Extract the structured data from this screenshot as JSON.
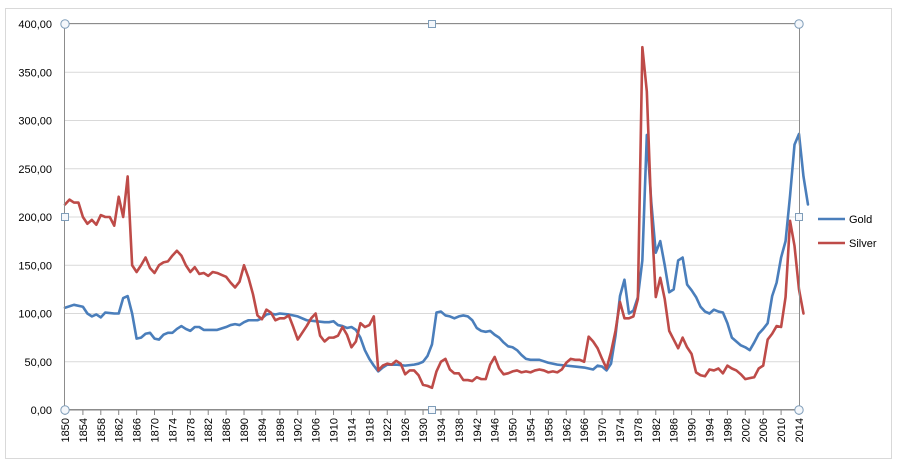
{
  "chart_data": {
    "type": "line",
    "title": "",
    "xlabel": "",
    "ylabel": "",
    "xlim": [
      1850,
      2014
    ],
    "ylim": [
      0,
      400
    ],
    "grid": true,
    "legend_position": "right",
    "x_ticks": [
      1850,
      1854,
      1858,
      1862,
      1866,
      1870,
      1874,
      1878,
      1882,
      1886,
      1890,
      1894,
      1898,
      1902,
      1906,
      1910,
      1914,
      1918,
      1922,
      1926,
      1930,
      1934,
      1938,
      1942,
      1946,
      1950,
      1954,
      1958,
      1962,
      1966,
      1970,
      1974,
      1978,
      1982,
      1986,
      1990,
      1994,
      1998,
      2002,
      2006,
      2010,
      2014
    ],
    "y_ticks": [
      "0,00",
      "50,00",
      "100,00",
      "150,00",
      "200,00",
      "250,00",
      "300,00",
      "350,00",
      "400,00"
    ],
    "series": [
      {
        "name": "Gold",
        "color": "#4a7ebb",
        "points": [
          [
            1850,
            106
          ],
          [
            1852,
            109
          ],
          [
            1854,
            107
          ],
          [
            1855,
            100
          ],
          [
            1856,
            97
          ],
          [
            1857,
            99
          ],
          [
            1858,
            96
          ],
          [
            1859,
            101
          ],
          [
            1861,
            100
          ],
          [
            1862,
            100
          ],
          [
            1863,
            116
          ],
          [
            1864,
            118
          ],
          [
            1865,
            100
          ],
          [
            1866,
            74
          ],
          [
            1867,
            75
          ],
          [
            1868,
            79
          ],
          [
            1869,
            80
          ],
          [
            1870,
            74
          ],
          [
            1871,
            73
          ],
          [
            1872,
            78
          ],
          [
            1873,
            80
          ],
          [
            1874,
            80
          ],
          [
            1875,
            84
          ],
          [
            1876,
            87
          ],
          [
            1877,
            84
          ],
          [
            1878,
            82
          ],
          [
            1879,
            86
          ],
          [
            1880,
            86
          ],
          [
            1881,
            83
          ],
          [
            1882,
            83
          ],
          [
            1884,
            83
          ],
          [
            1886,
            86
          ],
          [
            1887,
            88
          ],
          [
            1888,
            89
          ],
          [
            1889,
            88
          ],
          [
            1890,
            91
          ],
          [
            1891,
            93
          ],
          [
            1893,
            93
          ],
          [
            1894,
            95
          ],
          [
            1895,
            99
          ],
          [
            1896,
            100
          ],
          [
            1897,
            99
          ],
          [
            1898,
            100
          ],
          [
            1900,
            99
          ],
          [
            1902,
            97
          ],
          [
            1904,
            93
          ],
          [
            1906,
            92
          ],
          [
            1908,
            91
          ],
          [
            1909,
            91
          ],
          [
            1910,
            92
          ],
          [
            1911,
            88
          ],
          [
            1912,
            87
          ],
          [
            1913,
            85
          ],
          [
            1914,
            86
          ],
          [
            1915,
            83
          ],
          [
            1916,
            75
          ],
          [
            1917,
            62
          ],
          [
            1918,
            53
          ],
          [
            1919,
            46
          ],
          [
            1920,
            40
          ],
          [
            1921,
            44
          ],
          [
            1922,
            47
          ],
          [
            1924,
            47
          ],
          [
            1926,
            46
          ],
          [
            1928,
            47
          ],
          [
            1929,
            48
          ],
          [
            1930,
            50
          ],
          [
            1931,
            56
          ],
          [
            1932,
            68
          ],
          [
            1933,
            101
          ],
          [
            1934,
            102
          ],
          [
            1935,
            98
          ],
          [
            1936,
            97
          ],
          [
            1937,
            95
          ],
          [
            1938,
            97
          ],
          [
            1939,
            98
          ],
          [
            1940,
            97
          ],
          [
            1941,
            93
          ],
          [
            1942,
            85
          ],
          [
            1943,
            82
          ],
          [
            1944,
            81
          ],
          [
            1945,
            82
          ],
          [
            1946,
            78
          ],
          [
            1947,
            75
          ],
          [
            1948,
            70
          ],
          [
            1949,
            66
          ],
          [
            1950,
            65
          ],
          [
            1951,
            62
          ],
          [
            1952,
            57
          ],
          [
            1953,
            53
          ],
          [
            1954,
            52
          ],
          [
            1956,
            52
          ],
          [
            1958,
            49
          ],
          [
            1960,
            47
          ],
          [
            1962,
            46
          ],
          [
            1964,
            45
          ],
          [
            1966,
            44
          ],
          [
            1968,
            42
          ],
          [
            1969,
            46
          ],
          [
            1970,
            45
          ],
          [
            1971,
            41
          ],
          [
            1972,
            48
          ],
          [
            1973,
            77
          ],
          [
            1974,
            118
          ],
          [
            1975,
            135
          ],
          [
            1976,
            100
          ],
          [
            1977,
            103
          ],
          [
            1978,
            117
          ],
          [
            1979,
            155
          ],
          [
            1980,
            285
          ],
          [
            1981,
            215
          ],
          [
            1982,
            163
          ],
          [
            1983,
            175
          ],
          [
            1984,
            150
          ],
          [
            1985,
            122
          ],
          [
            1986,
            125
          ],
          [
            1987,
            155
          ],
          [
            1988,
            158
          ],
          [
            1989,
            130
          ],
          [
            1990,
            124
          ],
          [
            1991,
            117
          ],
          [
            1992,
            107
          ],
          [
            1993,
            102
          ],
          [
            1994,
            100
          ],
          [
            1995,
            104
          ],
          [
            1996,
            102
          ],
          [
            1997,
            101
          ],
          [
            1998,
            90
          ],
          [
            1999,
            75
          ],
          [
            2000,
            71
          ],
          [
            2001,
            67
          ],
          [
            2002,
            65
          ],
          [
            2003,
            62
          ],
          [
            2004,
            70
          ],
          [
            2005,
            79
          ],
          [
            2006,
            84
          ],
          [
            2007,
            90
          ],
          [
            2008,
            118
          ],
          [
            2009,
            132
          ],
          [
            2010,
            158
          ],
          [
            2011,
            175
          ],
          [
            2012,
            222
          ],
          [
            2013,
            275
          ],
          [
            2014,
            286
          ],
          [
            2015,
            242
          ],
          [
            2016,
            213
          ]
        ]
      },
      {
        "name": "Silver",
        "color": "#be4b48",
        "points": [
          [
            1850,
            213
          ],
          [
            1851,
            218
          ],
          [
            1852,
            215
          ],
          [
            1853,
            215
          ],
          [
            1854,
            200
          ],
          [
            1855,
            193
          ],
          [
            1856,
            197
          ],
          [
            1857,
            192
          ],
          [
            1858,
            202
          ],
          [
            1859,
            200
          ],
          [
            1860,
            200
          ],
          [
            1861,
            191
          ],
          [
            1862,
            221
          ],
          [
            1863,
            200
          ],
          [
            1864,
            242
          ],
          [
            1865,
            150
          ],
          [
            1866,
            143
          ],
          [
            1867,
            150
          ],
          [
            1868,
            158
          ],
          [
            1869,
            147
          ],
          [
            1870,
            142
          ],
          [
            1871,
            150
          ],
          [
            1872,
            153
          ],
          [
            1873,
            154
          ],
          [
            1874,
            160
          ],
          [
            1875,
            165
          ],
          [
            1876,
            160
          ],
          [
            1877,
            150
          ],
          [
            1878,
            143
          ],
          [
            1879,
            148
          ],
          [
            1880,
            141
          ],
          [
            1881,
            142
          ],
          [
            1882,
            139
          ],
          [
            1883,
            143
          ],
          [
            1884,
            142
          ],
          [
            1885,
            140
          ],
          [
            1886,
            138
          ],
          [
            1887,
            132
          ],
          [
            1888,
            127
          ],
          [
            1889,
            133
          ],
          [
            1890,
            150
          ],
          [
            1891,
            137
          ],
          [
            1892,
            120
          ],
          [
            1893,
            98
          ],
          [
            1894,
            94
          ],
          [
            1895,
            104
          ],
          [
            1896,
            101
          ],
          [
            1897,
            93
          ],
          [
            1898,
            95
          ],
          [
            1899,
            95
          ],
          [
            1900,
            98
          ],
          [
            1901,
            86
          ],
          [
            1902,
            73
          ],
          [
            1903,
            80
          ],
          [
            1904,
            87
          ],
          [
            1905,
            95
          ],
          [
            1906,
            100
          ],
          [
            1907,
            77
          ],
          [
            1908,
            71
          ],
          [
            1909,
            75
          ],
          [
            1910,
            75
          ],
          [
            1911,
            77
          ],
          [
            1912,
            86
          ],
          [
            1913,
            78
          ],
          [
            1914,
            65
          ],
          [
            1915,
            71
          ],
          [
            1916,
            90
          ],
          [
            1917,
            86
          ],
          [
            1918,
            88
          ],
          [
            1919,
            97
          ],
          [
            1920,
            41
          ],
          [
            1921,
            46
          ],
          [
            1922,
            48
          ],
          [
            1923,
            47
          ],
          [
            1924,
            51
          ],
          [
            1925,
            48
          ],
          [
            1926,
            37
          ],
          [
            1927,
            41
          ],
          [
            1928,
            41
          ],
          [
            1929,
            36
          ],
          [
            1930,
            26
          ],
          [
            1931,
            25
          ],
          [
            1932,
            23
          ],
          [
            1933,
            40
          ],
          [
            1934,
            50
          ],
          [
            1935,
            53
          ],
          [
            1936,
            42
          ],
          [
            1937,
            38
          ],
          [
            1938,
            38
          ],
          [
            1939,
            31
          ],
          [
            1940,
            31
          ],
          [
            1941,
            30
          ],
          [
            1942,
            34
          ],
          [
            1943,
            32
          ],
          [
            1944,
            32
          ],
          [
            1945,
            47
          ],
          [
            1946,
            55
          ],
          [
            1947,
            43
          ],
          [
            1948,
            37
          ],
          [
            1949,
            38
          ],
          [
            1950,
            40
          ],
          [
            1951,
            41
          ],
          [
            1952,
            39
          ],
          [
            1953,
            40
          ],
          [
            1954,
            39
          ],
          [
            1955,
            41
          ],
          [
            1956,
            42
          ],
          [
            1957,
            41
          ],
          [
            1958,
            39
          ],
          [
            1959,
            40
          ],
          [
            1960,
            39
          ],
          [
            1961,
            42
          ],
          [
            1962,
            49
          ],
          [
            1963,
            53
          ],
          [
            1964,
            52
          ],
          [
            1965,
            52
          ],
          [
            1966,
            50
          ],
          [
            1967,
            76
          ],
          [
            1968,
            71
          ],
          [
            1969,
            64
          ],
          [
            1970,
            53
          ],
          [
            1971,
            43
          ],
          [
            1972,
            60
          ],
          [
            1973,
            82
          ],
          [
            1974,
            112
          ],
          [
            1975,
            95
          ],
          [
            1976,
            95
          ],
          [
            1977,
            97
          ],
          [
            1978,
            115
          ],
          [
            1979,
            376
          ],
          [
            1980,
            330
          ],
          [
            1981,
            205
          ],
          [
            1982,
            117
          ],
          [
            1983,
            137
          ],
          [
            1984,
            115
          ],
          [
            1985,
            82
          ],
          [
            1986,
            73
          ],
          [
            1987,
            64
          ],
          [
            1988,
            75
          ],
          [
            1989,
            65
          ],
          [
            1990,
            58
          ],
          [
            1991,
            39
          ],
          [
            1992,
            36
          ],
          [
            1993,
            35
          ],
          [
            1994,
            42
          ],
          [
            1995,
            41
          ],
          [
            1996,
            43
          ],
          [
            1997,
            38
          ],
          [
            1998,
            46
          ],
          [
            1999,
            43
          ],
          [
            2000,
            41
          ],
          [
            2001,
            37
          ],
          [
            2002,
            32
          ],
          [
            2003,
            33
          ],
          [
            2004,
            34
          ],
          [
            2005,
            43
          ],
          [
            2006,
            46
          ],
          [
            2007,
            73
          ],
          [
            2008,
            79
          ],
          [
            2009,
            87
          ],
          [
            2010,
            86
          ],
          [
            2011,
            117
          ],
          [
            2012,
            196
          ],
          [
            2013,
            170
          ],
          [
            2014,
            125
          ],
          [
            2015,
            100
          ]
        ]
      }
    ]
  },
  "colors": {
    "frame": "#d9d9d9",
    "plot_border": "#8c8c8c",
    "gridline": "#d9d9d9",
    "selection_handle": "#7f9db9"
  }
}
